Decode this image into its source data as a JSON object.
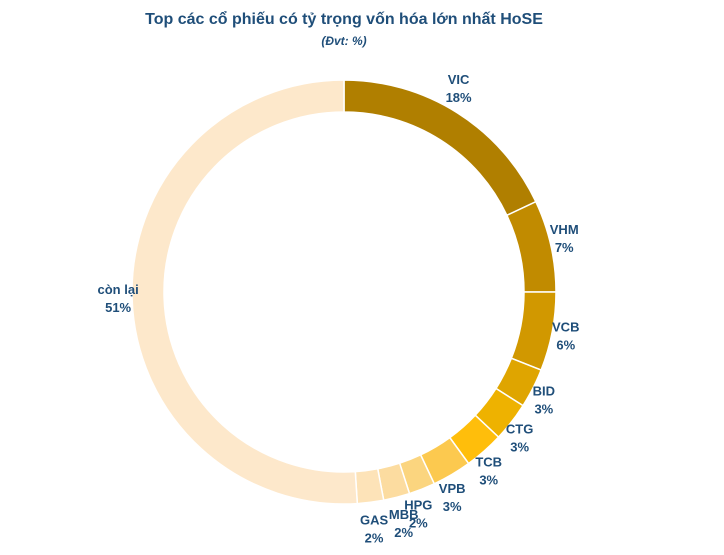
{
  "chart_data": {
    "type": "donut",
    "title": "Top các cổ phiếu có tỷ trọng vốn hóa lớn nhất HoSE",
    "subtitle": "(Đvt: %)",
    "categories": [
      "VIC",
      "VHM",
      "VCB",
      "BID",
      "CTG",
      "TCB",
      "VPB",
      "HPG",
      "MBB",
      "GAS",
      "còn lại"
    ],
    "values": [
      18,
      7,
      6,
      3,
      3,
      3,
      3,
      2,
      2,
      2,
      51
    ],
    "value_labels": [
      "18%",
      "7%",
      "6%",
      "3%",
      "3%",
      "3%",
      "3%",
      "2%",
      "2%",
      "2%",
      "51%"
    ],
    "colors": [
      "#b07f00",
      "#c18b00",
      "#d19800",
      "#dfa500",
      "#eeb200",
      "#ffbe0b",
      "#fcc94f",
      "#fbd57f",
      "#fcdca0",
      "#fde3b8",
      "#fde8cb"
    ]
  }
}
